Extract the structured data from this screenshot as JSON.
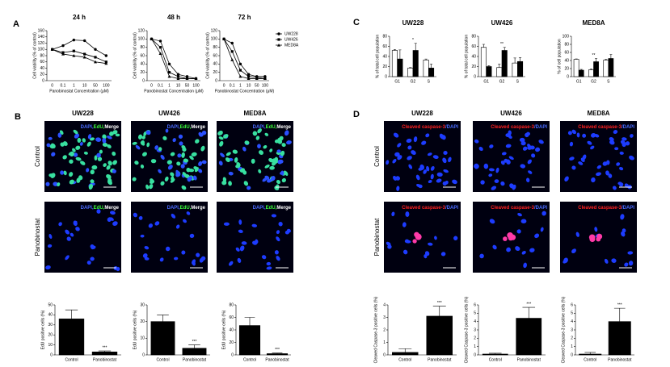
{
  "panel_labels": [
    "A",
    "B",
    "C",
    "D"
  ],
  "chart_data": [
    {
      "type": "line",
      "title": "24 h",
      "x_label": "Panobinostat Concentration (μM)",
      "y_label": "Cell viability (% of control)",
      "categories": [
        "0",
        "0.1",
        "1",
        "10",
        "50",
        "100"
      ],
      "series": [
        {
          "color": "#000000",
          "marker": "circle",
          "values": [
            100,
            112,
            130,
            128,
            100,
            80
          ]
        },
        {
          "color": "#000000",
          "marker": "square",
          "values": [
            100,
            90,
            95,
            85,
            75,
            60
          ]
        },
        {
          "color": "#000000",
          "marker": "triangle",
          "values": [
            100,
            85,
            80,
            75,
            60,
            55
          ]
        }
      ],
      "ylim": [
        0,
        160
      ],
      "yticks": [
        0,
        20,
        40,
        60,
        80,
        100,
        120,
        140,
        160
      ]
    },
    {
      "type": "line",
      "title": "48 h",
      "x_label": "Panobinostat Concentration (μM)",
      "y_label": "Cell viability (% of control)",
      "categories": [
        "0",
        "0.1",
        "1",
        "10",
        "50",
        "100"
      ],
      "series": [
        {
          "color": "#000000",
          "marker": "circle",
          "values": [
            100,
            95,
            40,
            15,
            10,
            5
          ]
        },
        {
          "color": "#000000",
          "marker": "square",
          "values": [
            100,
            80,
            20,
            10,
            5,
            5
          ]
        },
        {
          "color": "#000000",
          "marker": "triangle",
          "values": [
            100,
            65,
            10,
            5,
            5,
            5
          ]
        }
      ],
      "ylim": [
        0,
        120
      ],
      "yticks": [
        0,
        20,
        40,
        60,
        80,
        100,
        120
      ]
    },
    {
      "type": "line",
      "title": "72 h",
      "x_label": "Panobinostat Concentration (μM)",
      "y_label": "Cell viability (% of control)",
      "categories": [
        "0",
        "0.1",
        "1",
        "10",
        "50",
        "100"
      ],
      "series": [
        {
          "name": "UW228",
          "color": "#000000",
          "marker": "circle",
          "values": [
            100,
            90,
            40,
            15,
            10,
            10
          ]
        },
        {
          "name": "UW426",
          "color": "#000000",
          "marker": "square",
          "values": [
            100,
            70,
            25,
            10,
            8,
            5
          ]
        },
        {
          "name": "MED8A",
          "color": "#000000",
          "marker": "triangle",
          "values": [
            100,
            50,
            10,
            5,
            5,
            5
          ]
        }
      ],
      "ylim": [
        0,
        120
      ],
      "yticks": [
        0,
        20,
        40,
        60,
        80,
        100,
        120
      ],
      "legend": "right"
    },
    {
      "type": "bar",
      "title": "UW228",
      "y_label": "% of total cell population",
      "categories": [
        "G1",
        "G2",
        "S"
      ],
      "series": [
        {
          "color": "#ffffff",
          "values": [
            52,
            17,
            33
          ],
          "errors": [
            2,
            1,
            2
          ]
        },
        {
          "color": "#000000",
          "values": [
            35,
            52,
            17
          ],
          "errors": [
            18,
            14,
            8
          ]
        }
      ],
      "significance": [
        null,
        "*",
        null
      ],
      "ylim": [
        0,
        80
      ],
      "yticks": [
        0,
        20,
        40,
        60,
        80
      ]
    },
    {
      "type": "bar",
      "title": "UW426",
      "y_label": "% of total cell population",
      "categories": [
        "G1",
        "G2",
        "S"
      ],
      "series": [
        {
          "color": "#ffffff",
          "values": [
            58,
            18,
            27
          ],
          "errors": [
            6,
            7,
            10
          ]
        },
        {
          "color": "#000000",
          "values": [
            20,
            52,
            30
          ],
          "errors": [
            2,
            6,
            8
          ]
        }
      ],
      "significance": [
        null,
        "**",
        null
      ],
      "ylim": [
        0,
        80
      ],
      "yticks": [
        0,
        20,
        40,
        60,
        80
      ]
    },
    {
      "type": "bar",
      "title": "MED8A",
      "y_label": "% of cell population",
      "categories": [
        "G1",
        "G2",
        "S"
      ],
      "series": [
        {
          "color": "#ffffff",
          "values": [
            43,
            17,
            41
          ],
          "errors": [
            1,
            2,
            2
          ]
        },
        {
          "color": "#000000",
          "values": [
            16,
            37,
            45
          ],
          "errors": [
            2,
            8,
            10
          ]
        }
      ],
      "significance": [
        null,
        "**",
        null
      ],
      "ylim": [
        0,
        100
      ],
      "yticks": [
        0,
        20,
        40,
        60,
        80,
        100
      ]
    },
    {
      "type": "bar",
      "y_label": "EdU positive cells (%)",
      "categories": [
        "Control",
        "Panobinostat"
      ],
      "series": [
        {
          "color": "#000000",
          "values": [
            36,
            3
          ],
          "errors": [
            9,
            1
          ]
        }
      ],
      "significance": [
        null,
        "***"
      ],
      "ylim": [
        0,
        50
      ],
      "yticks": [
        0,
        10,
        20,
        30,
        40,
        50
      ]
    },
    {
      "type": "bar",
      "y_label": "EdU positive cells (%)",
      "categories": [
        "Control",
        "Panobinostat"
      ],
      "series": [
        {
          "color": "#000000",
          "values": [
            20,
            4
          ],
          "errors": [
            4,
            2
          ]
        }
      ],
      "significance": [
        null,
        "***"
      ],
      "ylim": [
        0,
        30
      ],
      "yticks": [
        0,
        10,
        20,
        30
      ]
    },
    {
      "type": "bar",
      "y_label": "EdU positive cells (%)",
      "categories": [
        "Control",
        "Panobinostat"
      ],
      "series": [
        {
          "color": "#000000",
          "values": [
            47,
            2
          ],
          "errors": [
            13,
            1
          ]
        }
      ],
      "significance": [
        null,
        "***"
      ],
      "ylim": [
        0,
        80
      ],
      "yticks": [
        0,
        20,
        40,
        60,
        80
      ]
    },
    {
      "type": "bar",
      "y_label": "Cleaved Caspase-3 positive cells (%)",
      "categories": [
        "Control",
        "Panobinostat"
      ],
      "series": [
        {
          "color": "#000000",
          "values": [
            0.2,
            3.1
          ],
          "errors": [
            0.3,
            0.8
          ]
        }
      ],
      "significance": [
        null,
        "***"
      ],
      "ylim": [
        0,
        4
      ],
      "yticks": [
        0,
        1,
        2,
        3,
        4
      ]
    },
    {
      "type": "bar",
      "y_label": "Cleaved Caspase-3 positive cells (%)",
      "categories": [
        "Control",
        "Panobinostat"
      ],
      "series": [
        {
          "color": "#000000",
          "values": [
            0.1,
            4.4
          ],
          "errors": [
            0.1,
            1.3
          ]
        }
      ],
      "significance": [
        null,
        "***"
      ],
      "ylim": [
        0,
        6
      ],
      "yticks": [
        0,
        1,
        2,
        3,
        4,
        5,
        6
      ]
    },
    {
      "type": "bar",
      "y_label": "Cleaved Caspase-3 positive cells (%)",
      "categories": [
        "Control",
        "Panobinostat"
      ],
      "series": [
        {
          "color": "#000000",
          "values": [
            0.1,
            4.0
          ],
          "errors": [
            0.2,
            1.6
          ]
        }
      ],
      "significance": [
        null,
        "***"
      ],
      "ylim": [
        0,
        6
      ],
      "yticks": [
        0,
        1,
        2,
        3,
        4,
        5,
        6
      ]
    }
  ],
  "panel_b_images": {
    "columns": [
      "UW228",
      "UW426",
      "MED8A"
    ],
    "rows": [
      "Control",
      "Panobinostat"
    ],
    "stain_label": [
      "DAPI,",
      "EdU,",
      "Merge"
    ],
    "stain_colors": [
      "#4a6bff",
      "#3cff3c",
      "#ffffff"
    ]
  },
  "panel_d_images": {
    "columns": [
      "UW228",
      "UW426",
      "MED8A"
    ],
    "rows": [
      "Control",
      "Panobinostat"
    ],
    "stain_label": [
      "Cleaved caspase-3",
      "/DAPI"
    ],
    "stain_colors": [
      "#ff2020",
      "#4a6bff"
    ]
  }
}
